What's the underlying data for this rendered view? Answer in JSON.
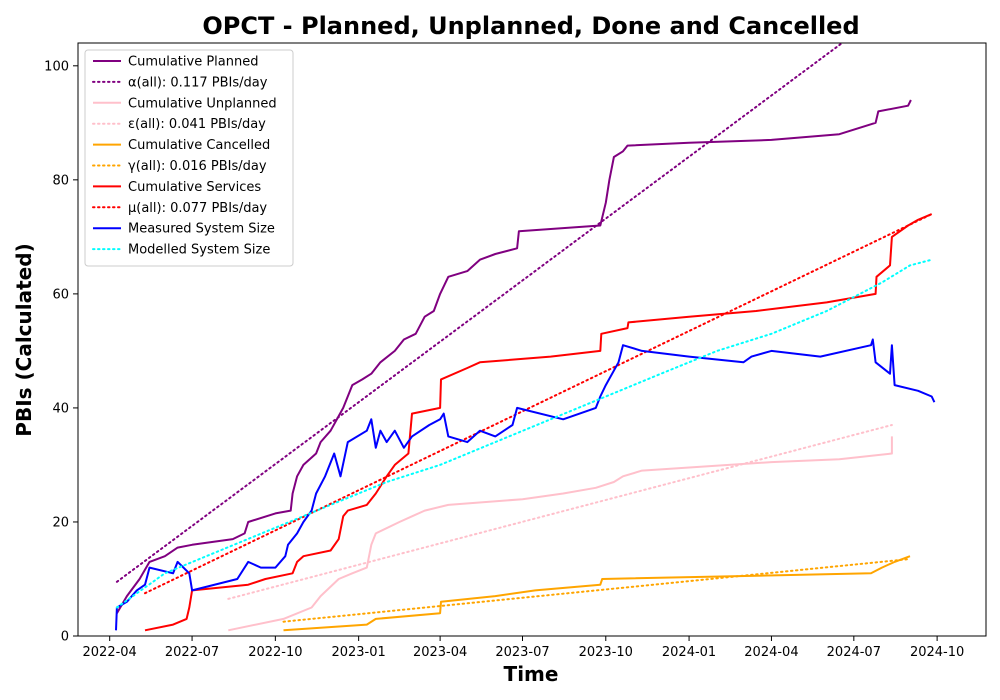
{
  "chart_data": {
    "type": "line",
    "title": "OPCT - Planned, Unplanned, Done  and Cancelled",
    "xlabel": "Time",
    "ylabel": "PBIs (Calculated)",
    "x_ticks": [
      "2022-04",
      "2022-07",
      "2022-10",
      "2023-01",
      "2023-04",
      "2023-07",
      "2023-10",
      "2024-01",
      "2024-04",
      "2024-07",
      "2024-10"
    ],
    "y_ticks": [
      "0",
      "20",
      "40",
      "60",
      "80",
      "100"
    ],
    "xlim": [
      "2022-02-25",
      "2024-11-24"
    ],
    "ylim": [
      0,
      104
    ],
    "grid": false,
    "legend_position": "upper-left",
    "series": [
      {
        "name": "Cumulative Planned",
        "color": "#800080",
        "style": "solid",
        "points": [
          [
            "2022-04-09",
            4
          ],
          [
            "2022-04-20",
            7
          ],
          [
            "2022-05-04",
            10
          ],
          [
            "2022-05-15",
            13
          ],
          [
            "2022-06-01",
            14
          ],
          [
            "2022-06-15",
            15.5
          ],
          [
            "2022-07-01",
            16
          ],
          [
            "2022-08-15",
            17
          ],
          [
            "2022-08-28",
            18
          ],
          [
            "2022-09-01",
            20
          ],
          [
            "2022-10-01",
            21.5
          ],
          [
            "2022-10-18",
            22
          ],
          [
            "2022-10-20",
            25
          ],
          [
            "2022-10-25",
            28
          ],
          [
            "2022-11-01",
            30
          ],
          [
            "2022-11-15",
            32
          ],
          [
            "2022-11-20",
            34
          ],
          [
            "2022-12-01",
            36
          ],
          [
            "2022-12-15",
            40
          ],
          [
            "2022-12-25",
            44
          ],
          [
            "2023-01-05",
            45
          ],
          [
            "2023-01-15",
            46
          ],
          [
            "2023-01-25",
            48
          ],
          [
            "2023-02-10",
            50
          ],
          [
            "2023-02-20",
            52
          ],
          [
            "2023-03-05",
            53
          ],
          [
            "2023-03-15",
            56
          ],
          [
            "2023-03-25",
            57
          ],
          [
            "2023-04-01",
            60
          ],
          [
            "2023-04-10",
            63
          ],
          [
            "2023-05-01",
            64
          ],
          [
            "2023-05-15",
            66
          ],
          [
            "2023-06-01",
            67
          ],
          [
            "2023-06-25",
            68
          ],
          [
            "2023-06-27",
            71
          ],
          [
            "2023-09-25",
            72
          ],
          [
            "2023-10-01",
            76
          ],
          [
            "2023-10-05",
            80
          ],
          [
            "2023-10-10",
            84
          ],
          [
            "2023-10-20",
            85
          ],
          [
            "2023-10-25",
            86
          ],
          [
            "2024-01-01",
            86.5
          ],
          [
            "2024-04-01",
            87
          ],
          [
            "2024-06-15",
            88
          ],
          [
            "2024-07-25",
            90
          ],
          [
            "2024-07-28",
            92
          ],
          [
            "2024-08-30",
            93
          ],
          [
            "2024-09-02",
            94
          ]
        ]
      },
      {
        "name": "α(all): 0.117 PBIs/day",
        "color": "#800080",
        "style": "dotted",
        "points": [
          [
            "2022-04-09",
            9.5
          ],
          [
            "2024-06-18",
            104
          ]
        ]
      },
      {
        "name": "Cumulative Unplanned",
        "color": "#ffc0cb",
        "style": "solid",
        "points": [
          [
            "2022-08-10",
            1
          ],
          [
            "2022-10-10",
            3
          ],
          [
            "2022-11-10",
            5
          ],
          [
            "2022-11-20",
            7
          ],
          [
            "2022-12-10",
            10
          ],
          [
            "2022-12-25",
            11
          ],
          [
            "2023-01-10",
            12
          ],
          [
            "2023-01-15",
            16
          ],
          [
            "2023-01-20",
            18
          ],
          [
            "2023-02-15",
            20
          ],
          [
            "2023-03-01",
            21
          ],
          [
            "2023-03-15",
            22
          ],
          [
            "2023-04-10",
            23
          ],
          [
            "2023-07-01",
            24
          ],
          [
            "2023-08-15",
            25
          ],
          [
            "2023-09-20",
            26
          ],
          [
            "2023-10-10",
            27
          ],
          [
            "2023-10-20",
            28
          ],
          [
            "2023-11-10",
            29
          ],
          [
            "2024-04-01",
            30.5
          ],
          [
            "2024-06-15",
            31
          ],
          [
            "2024-08-12",
            32
          ],
          [
            "2024-08-12",
            35
          ]
        ]
      },
      {
        "name": "ε(all): 0.041 PBIs/day",
        "color": "#ffc0cb",
        "style": "dotted",
        "points": [
          [
            "2022-08-10",
            6.5
          ],
          [
            "2024-08-12",
            37
          ]
        ]
      },
      {
        "name": "Cumulative Cancelled",
        "color": "#ffa500",
        "style": "solid",
        "points": [
          [
            "2022-10-10",
            1
          ],
          [
            "2023-01-10",
            2
          ],
          [
            "2023-01-20",
            3
          ],
          [
            "2023-04-01",
            4
          ],
          [
            "2023-04-02",
            6
          ],
          [
            "2023-06-01",
            7
          ],
          [
            "2023-07-15",
            8
          ],
          [
            "2023-09-25",
            9
          ],
          [
            "2023-09-27",
            10
          ],
          [
            "2024-07-20",
            11
          ],
          [
            "2024-08-01",
            12
          ],
          [
            "2024-08-15",
            13
          ],
          [
            "2024-09-01",
            14
          ]
        ]
      },
      {
        "name": "γ(all): 0.016 PBIs/day",
        "color": "#ffa500",
        "style": "dotted",
        "points": [
          [
            "2022-10-10",
            2.5
          ],
          [
            "2024-09-01",
            13.5
          ]
        ]
      },
      {
        "name": "Cumulative Services",
        "color": "#ff0000",
        "style": "solid",
        "points": [
          [
            "2022-05-10",
            1
          ],
          [
            "2022-06-10",
            2
          ],
          [
            "2022-06-25",
            3
          ],
          [
            "2022-06-28",
            5
          ],
          [
            "2022-07-01",
            8
          ],
          [
            "2022-09-01",
            9
          ],
          [
            "2022-09-20",
            10
          ],
          [
            "2022-10-20",
            11
          ],
          [
            "2022-10-25",
            13
          ],
          [
            "2022-11-01",
            14
          ],
          [
            "2022-12-01",
            15
          ],
          [
            "2022-12-10",
            17
          ],
          [
            "2022-12-15",
            21
          ],
          [
            "2022-12-20",
            22
          ],
          [
            "2023-01-10",
            23
          ],
          [
            "2023-01-20",
            25
          ],
          [
            "2023-02-01",
            28
          ],
          [
            "2023-02-10",
            30
          ],
          [
            "2023-02-25",
            32
          ],
          [
            "2023-03-01",
            39
          ],
          [
            "2023-04-01",
            40
          ],
          [
            "2023-04-02",
            45
          ],
          [
            "2023-05-01",
            47
          ],
          [
            "2023-05-15",
            48
          ],
          [
            "2023-08-01",
            49
          ],
          [
            "2023-09-25",
            50
          ],
          [
            "2023-09-26",
            53
          ],
          [
            "2023-10-25",
            54
          ],
          [
            "2023-10-26",
            55
          ],
          [
            "2024-01-01",
            56
          ],
          [
            "2024-03-15",
            57
          ],
          [
            "2024-06-01",
            58.5
          ],
          [
            "2024-07-25",
            60
          ],
          [
            "2024-07-26",
            63
          ],
          [
            "2024-08-10",
            65
          ],
          [
            "2024-08-12",
            70
          ],
          [
            "2024-08-30",
            72
          ],
          [
            "2024-09-10",
            73
          ],
          [
            "2024-09-25",
            74
          ]
        ]
      },
      {
        "name": "μ(all): 0.077 PBIs/day",
        "color": "#ff0000",
        "style": "dotted",
        "points": [
          [
            "2022-05-10",
            7.5
          ],
          [
            "2024-09-25",
            74
          ]
        ]
      },
      {
        "name": "Measured System Size",
        "color": "#0000ff",
        "style": "solid",
        "points": [
          [
            "2022-04-08",
            1
          ],
          [
            "2022-04-09",
            5
          ],
          [
            "2022-04-20",
            6
          ],
          [
            "2022-05-01",
            8
          ],
          [
            "2022-05-10",
            9
          ],
          [
            "2022-05-15",
            12
          ],
          [
            "2022-06-10",
            11
          ],
          [
            "2022-06-15",
            13
          ],
          [
            "2022-06-28",
            11
          ],
          [
            "2022-07-01",
            8
          ],
          [
            "2022-08-20",
            10
          ],
          [
            "2022-09-01",
            13
          ],
          [
            "2022-09-15",
            12
          ],
          [
            "2022-10-01",
            12
          ],
          [
            "2022-10-12",
            14
          ],
          [
            "2022-10-15",
            16
          ],
          [
            "2022-10-25",
            18
          ],
          [
            "2022-11-01",
            20
          ],
          [
            "2022-11-10",
            22
          ],
          [
            "2022-11-15",
            25
          ],
          [
            "2022-11-25",
            28
          ],
          [
            "2022-12-05",
            32
          ],
          [
            "2022-12-12",
            28
          ],
          [
            "2022-12-20",
            34
          ],
          [
            "2023-01-10",
            36
          ],
          [
            "2023-01-15",
            38
          ],
          [
            "2023-01-20",
            33
          ],
          [
            "2023-01-25",
            36
          ],
          [
            "2023-02-01",
            34
          ],
          [
            "2023-02-10",
            36
          ],
          [
            "2023-02-20",
            33
          ],
          [
            "2023-03-01",
            35
          ],
          [
            "2023-03-20",
            37
          ],
          [
            "2023-04-01",
            38
          ],
          [
            "2023-04-05",
            39
          ],
          [
            "2023-04-10",
            35
          ],
          [
            "2023-05-01",
            34
          ],
          [
            "2023-05-15",
            36
          ],
          [
            "2023-06-01",
            35
          ],
          [
            "2023-06-20",
            37
          ],
          [
            "2023-06-25",
            40
          ],
          [
            "2023-08-15",
            38
          ],
          [
            "2023-09-20",
            40
          ],
          [
            "2023-09-25",
            42
          ],
          [
            "2023-10-01",
            44
          ],
          [
            "2023-10-15",
            48
          ],
          [
            "2023-10-20",
            51
          ],
          [
            "2023-11-10",
            50
          ],
          [
            "2024-01-01",
            49
          ],
          [
            "2024-03-01",
            48
          ],
          [
            "2024-03-10",
            49
          ],
          [
            "2024-04-01",
            50
          ],
          [
            "2024-05-25",
            49
          ],
          [
            "2024-07-20",
            51
          ],
          [
            "2024-07-22",
            52
          ],
          [
            "2024-07-25",
            48
          ],
          [
            "2024-08-10",
            46
          ],
          [
            "2024-08-12",
            51
          ],
          [
            "2024-08-15",
            44
          ],
          [
            "2024-09-10",
            43
          ],
          [
            "2024-09-25",
            42
          ],
          [
            "2024-09-28",
            41
          ]
        ]
      },
      {
        "name": "Modelled System Size",
        "color": "#00ffff",
        "style": "dotted",
        "points": [
          [
            "2022-04-09",
            5
          ],
          [
            "2022-06-01",
            11
          ],
          [
            "2022-08-01",
            15
          ],
          [
            "2022-10-01",
            19
          ],
          [
            "2022-12-01",
            23
          ],
          [
            "2023-02-01",
            27
          ],
          [
            "2023-04-01",
            30
          ],
          [
            "2023-06-01",
            34
          ],
          [
            "2023-08-01",
            38
          ],
          [
            "2023-10-01",
            42
          ],
          [
            "2023-12-01",
            46
          ],
          [
            "2024-02-01",
            50
          ],
          [
            "2024-04-01",
            53
          ],
          [
            "2024-06-01",
            57
          ],
          [
            "2024-08-01",
            62
          ],
          [
            "2024-09-01",
            65
          ],
          [
            "2024-09-25",
            66
          ]
        ]
      }
    ]
  }
}
